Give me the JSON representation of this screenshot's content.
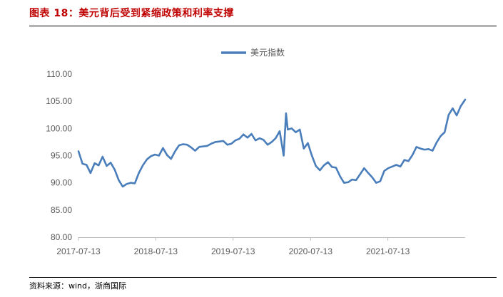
{
  "figure": {
    "title": "图表 18：美元背后受到紧缩政策和利率支撑",
    "source": "资料来源：wind，浙商国际"
  },
  "chart_data": {
    "type": "line",
    "title": "",
    "xlabel": "",
    "ylabel": "",
    "legend_position": "top-center",
    "grid": false,
    "ylim": [
      80,
      110
    ],
    "xlim": [
      "2017-07-13",
      "2022-07-13"
    ],
    "y_ticks": [
      "80.00",
      "85.00",
      "90.00",
      "95.00",
      "100.00",
      "105.00",
      "110.00"
    ],
    "x_ticks": [
      "2017-07-13",
      "2018-07-13",
      "2019-07-13",
      "2020-07-13",
      "2021-07-13"
    ],
    "series": [
      {
        "name": "美元指数",
        "color": "#4a7ebb",
        "x": [
          "2017-07-13",
          "2017-08-01",
          "2017-08-20",
          "2017-09-08",
          "2017-09-27",
          "2017-10-16",
          "2017-11-04",
          "2017-11-23",
          "2017-12-12",
          "2017-12-31",
          "2018-01-19",
          "2018-02-07",
          "2018-02-26",
          "2018-03-17",
          "2018-04-05",
          "2018-04-24",
          "2018-05-13",
          "2018-06-01",
          "2018-06-20",
          "2018-07-09",
          "2018-07-28",
          "2018-08-16",
          "2018-09-04",
          "2018-09-23",
          "2018-10-12",
          "2018-10-31",
          "2018-11-19",
          "2018-12-08",
          "2018-12-27",
          "2019-01-15",
          "2019-02-03",
          "2019-02-22",
          "2019-03-13",
          "2019-04-01",
          "2019-04-20",
          "2019-05-09",
          "2019-05-28",
          "2019-06-16",
          "2019-07-05",
          "2019-07-24",
          "2019-08-12",
          "2019-08-31",
          "2019-09-19",
          "2019-10-08",
          "2019-10-27",
          "2019-11-15",
          "2019-12-04",
          "2019-12-23",
          "2020-01-11",
          "2020-01-30",
          "2020-02-18",
          "2020-03-08",
          "2020-03-19",
          "2020-03-27",
          "2020-04-15",
          "2020-05-04",
          "2020-05-23",
          "2020-06-11",
          "2020-06-30",
          "2020-07-19",
          "2020-08-07",
          "2020-08-26",
          "2020-09-14",
          "2020-10-03",
          "2020-10-22",
          "2020-11-10",
          "2020-11-29",
          "2020-12-18",
          "2021-01-06",
          "2021-01-25",
          "2021-02-13",
          "2021-03-04",
          "2021-03-23",
          "2021-04-11",
          "2021-04-30",
          "2021-05-19",
          "2021-06-07",
          "2021-06-26",
          "2021-07-15",
          "2021-08-03",
          "2021-08-22",
          "2021-09-10",
          "2021-09-29",
          "2021-10-18",
          "2021-11-06",
          "2021-11-25",
          "2021-12-14",
          "2022-01-02",
          "2022-01-21",
          "2022-02-09",
          "2022-02-28",
          "2022-03-19",
          "2022-04-07",
          "2022-04-26",
          "2022-05-15",
          "2022-06-03",
          "2022-06-22",
          "2022-07-13"
        ],
        "values": [
          95.8,
          93.5,
          93.3,
          91.8,
          93.6,
          93.2,
          94.8,
          93.1,
          93.7,
          92.4,
          90.5,
          89.3,
          89.8,
          90.0,
          89.9,
          91.8,
          93.2,
          94.3,
          94.9,
          95.2,
          95.0,
          96.4,
          95.1,
          94.4,
          95.8,
          96.9,
          97.1,
          97.0,
          96.5,
          95.9,
          96.6,
          96.7,
          96.8,
          97.2,
          97.5,
          97.6,
          97.7,
          97.0,
          97.2,
          97.8,
          98.1,
          98.9,
          98.3,
          99.0,
          97.8,
          98.2,
          97.9,
          97.0,
          97.5,
          98.2,
          99.5,
          95.0,
          102.8,
          99.8,
          100.0,
          99.3,
          99.8,
          96.3,
          97.3,
          95.0,
          93.1,
          92.3,
          93.2,
          93.8,
          92.9,
          92.8,
          91.2,
          90.0,
          90.1,
          90.6,
          90.5,
          91.6,
          92.7,
          91.8,
          91.0,
          90.0,
          90.3,
          92.2,
          92.7,
          93.0,
          93.3,
          93.0,
          94.2,
          94.0,
          95.1,
          96.6,
          96.3,
          96.1,
          96.2,
          95.9,
          97.4,
          98.6,
          99.3,
          102.5,
          103.7,
          102.4,
          104.1,
          105.3
        ]
      }
    ]
  }
}
